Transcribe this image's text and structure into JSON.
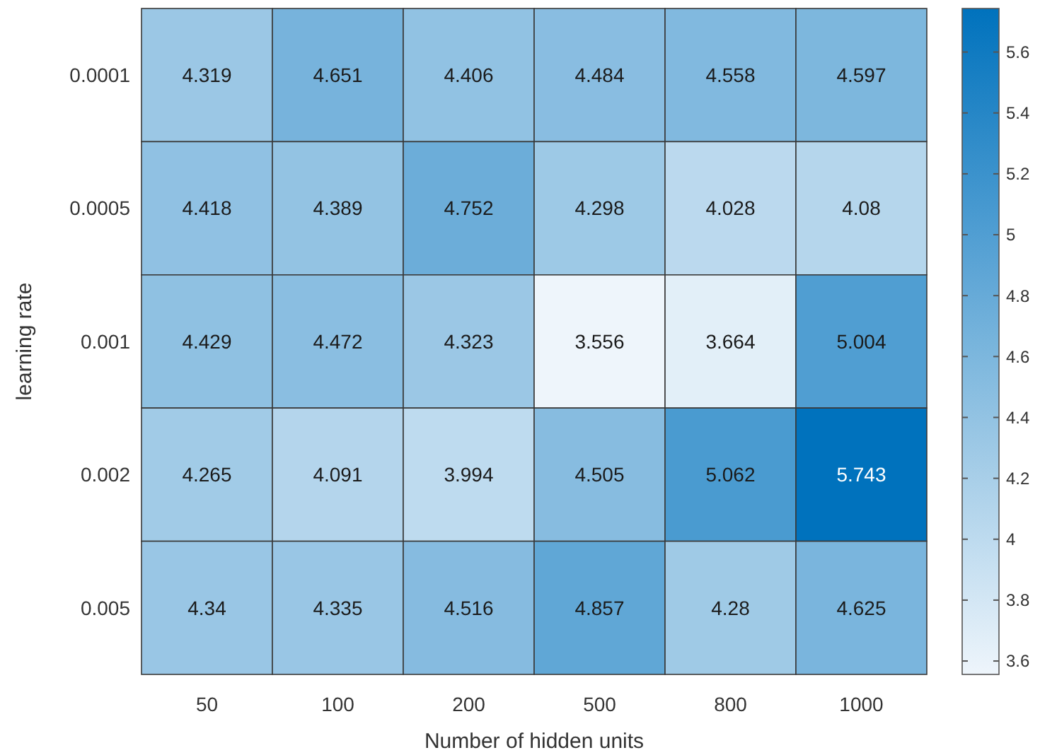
{
  "chart_data": {
    "type": "heatmap",
    "xlabel": "Number of hidden units",
    "ylabel": "learning rate",
    "categories": [
      "50",
      "100",
      "200",
      "500",
      "800",
      "1000"
    ],
    "y_categories": [
      "0.0001",
      "0.0005",
      "0.001",
      "0.002",
      "0.005"
    ],
    "cells": [
      [
        4.319,
        4.651,
        4.406,
        4.484,
        4.558,
        4.597
      ],
      [
        4.418,
        4.389,
        4.752,
        4.298,
        4.028,
        4.08
      ],
      [
        4.429,
        4.472,
        4.323,
        3.556,
        3.664,
        5.004
      ],
      [
        4.265,
        4.091,
        3.994,
        4.505,
        5.062,
        5.743
      ],
      [
        4.34,
        4.335,
        4.516,
        4.857,
        4.28,
        4.625
      ]
    ],
    "data_labels": true,
    "colors": [
      "#eef5fb",
      "#0072bd"
    ],
    "clim": [
      3.556,
      5.743
    ],
    "cticks": [
      3.6,
      3.8,
      4,
      4.2,
      4.4,
      4.6,
      4.8,
      5,
      5.2,
      5.4,
      5.6
    ]
  }
}
